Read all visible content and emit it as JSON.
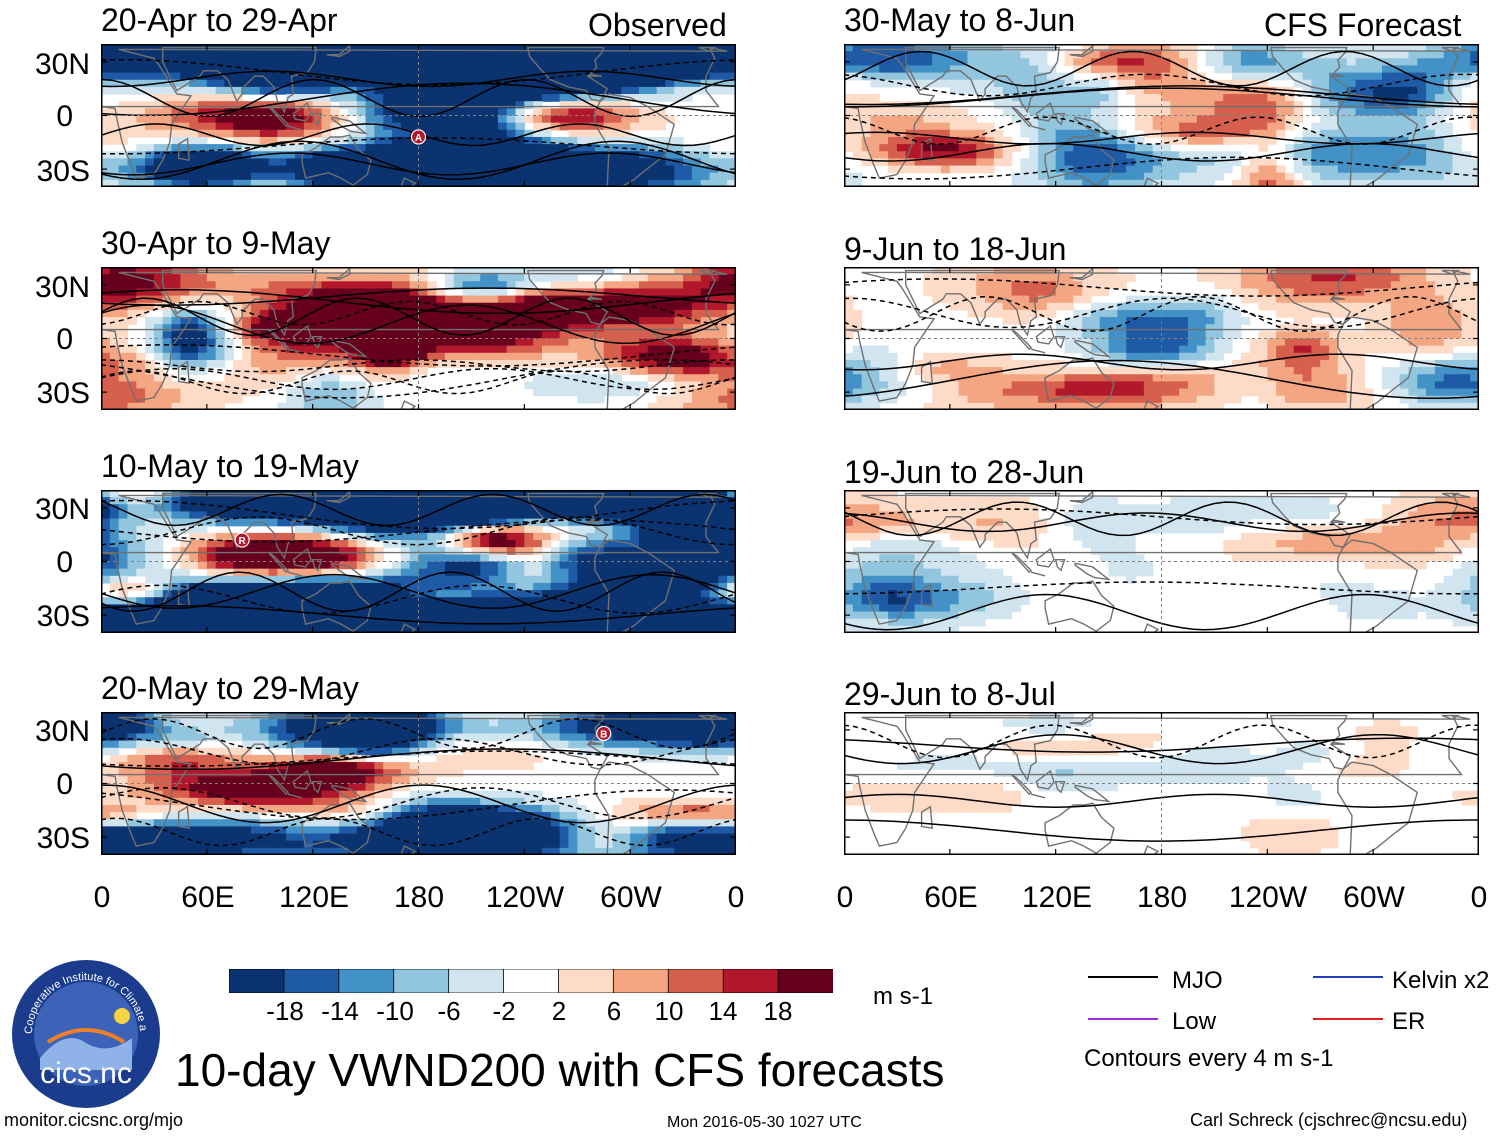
{
  "figure": {
    "main_title": "10-day VWND200 with CFS forecasts",
    "left_column_label": "Observed",
    "right_column_label": "CFS Forecast",
    "footer_left": "monitor.cicsnc.org/mjo",
    "footer_center": "Mon 2016-05-30 1027 UTC",
    "footer_right": "Carl Schreck (cjschrec@ncsu.edu)",
    "logo": {
      "short": "cics.nc",
      "ring_text": "Cooperative Institute for Climate and Satellites"
    }
  },
  "chart_data": {
    "type": "heatmap",
    "variable": "VWND200",
    "units": "m s-1",
    "x_ticks": [
      "0",
      "60E",
      "120E",
      "180",
      "120W",
      "60W",
      "0"
    ],
    "y_ticks": [
      "30N",
      "0",
      "30S"
    ],
    "panels": [
      {
        "title": "20-Apr to 29-Apr",
        "source": "observed",
        "intensity": 1.0,
        "markers": [
          {
            "label": "A",
            "lon": 180,
            "lat": -12
          }
        ]
      },
      {
        "title": "30-Apr to 9-May",
        "source": "observed",
        "intensity": 1.0,
        "markers": []
      },
      {
        "title": "10-May to 19-May",
        "source": "observed",
        "intensity": 1.0,
        "markers": [
          {
            "label": "R",
            "lon": 80,
            "lat": 12
          }
        ]
      },
      {
        "title": "20-May to 29-May",
        "source": "observed",
        "intensity": 1.0,
        "markers": [
          {
            "label": "B",
            "lon": 285,
            "lat": 28
          }
        ]
      },
      {
        "title": "30-May to 8-Jun",
        "source": "forecast",
        "intensity": 0.55,
        "markers": []
      },
      {
        "title": "9-Jun to 18-Jun",
        "source": "forecast",
        "intensity": 0.35,
        "markers": []
      },
      {
        "title": "19-Jun to 28-Jun",
        "source": "forecast",
        "intensity": 0.25,
        "markers": []
      },
      {
        "title": "29-Jun to 8-Jul",
        "source": "forecast",
        "intensity": 0.18,
        "markers": []
      }
    ],
    "colorbar": {
      "levels": [
        "-18",
        "-14",
        "-10",
        "-6",
        "-2",
        "2",
        "6",
        "10",
        "14",
        "18"
      ],
      "colors": [
        "#0a3370",
        "#1e5aa5",
        "#4291c7",
        "#92c5de",
        "#d1e5f0",
        "#ffffff",
        "#fddbc7",
        "#f4a582",
        "#d6604d",
        "#b2182b",
        "#67001f"
      ],
      "units": "m s-1"
    },
    "legend": [
      {
        "label": "MJO",
        "color": "#000000"
      },
      {
        "label": "Kelvin x2",
        "color": "#1f3fbf"
      },
      {
        "label": "Low",
        "color": "#9b30d9"
      },
      {
        "label": "ER",
        "color": "#e0201b"
      }
    ],
    "contour_note": "Contours every 4 m s-1"
  }
}
